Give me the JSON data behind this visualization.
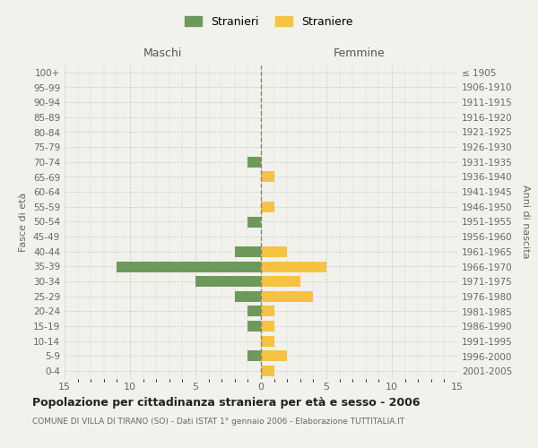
{
  "age_groups": [
    "100+",
    "95-99",
    "90-94",
    "85-89",
    "80-84",
    "75-79",
    "70-74",
    "65-69",
    "60-64",
    "55-59",
    "50-54",
    "45-49",
    "40-44",
    "35-39",
    "30-34",
    "25-29",
    "20-24",
    "15-19",
    "10-14",
    "5-9",
    "0-4"
  ],
  "birth_years": [
    "≤ 1905",
    "1906-1910",
    "1911-1915",
    "1916-1920",
    "1921-1925",
    "1926-1930",
    "1931-1935",
    "1936-1940",
    "1941-1945",
    "1946-1950",
    "1951-1955",
    "1956-1960",
    "1961-1965",
    "1966-1970",
    "1971-1975",
    "1976-1980",
    "1981-1985",
    "1986-1990",
    "1991-1995",
    "1996-2000",
    "2001-2005"
  ],
  "maschi": [
    0,
    0,
    0,
    0,
    0,
    0,
    1,
    0,
    0,
    0,
    1,
    0,
    2,
    11,
    5,
    2,
    1,
    1,
    0,
    1,
    0
  ],
  "femmine": [
    0,
    0,
    0,
    0,
    0,
    0,
    0,
    1,
    0,
    1,
    0,
    0,
    2,
    5,
    3,
    4,
    1,
    1,
    1,
    2,
    1
  ],
  "maschi_color": "#6d9a5b",
  "femmine_color": "#f5c242",
  "background_color": "#f2f2ec",
  "grid_color": "#cccccc",
  "center_line_color": "#888866",
  "title": "Popolazione per cittadinanza straniera per età e sesso - 2006",
  "subtitle": "COMUNE DI VILLA DI TIRANO (SO) - Dati ISTAT 1° gennaio 2006 - Elaborazione TUTTITALIA.IT",
  "xlabel_left": "Maschi",
  "xlabel_right": "Femmine",
  "ylabel_left": "Fasce di età",
  "ylabel_right": "Anni di nascita",
  "legend_stranieri": "Stranieri",
  "legend_straniere": "Straniere",
  "xlim": 15
}
